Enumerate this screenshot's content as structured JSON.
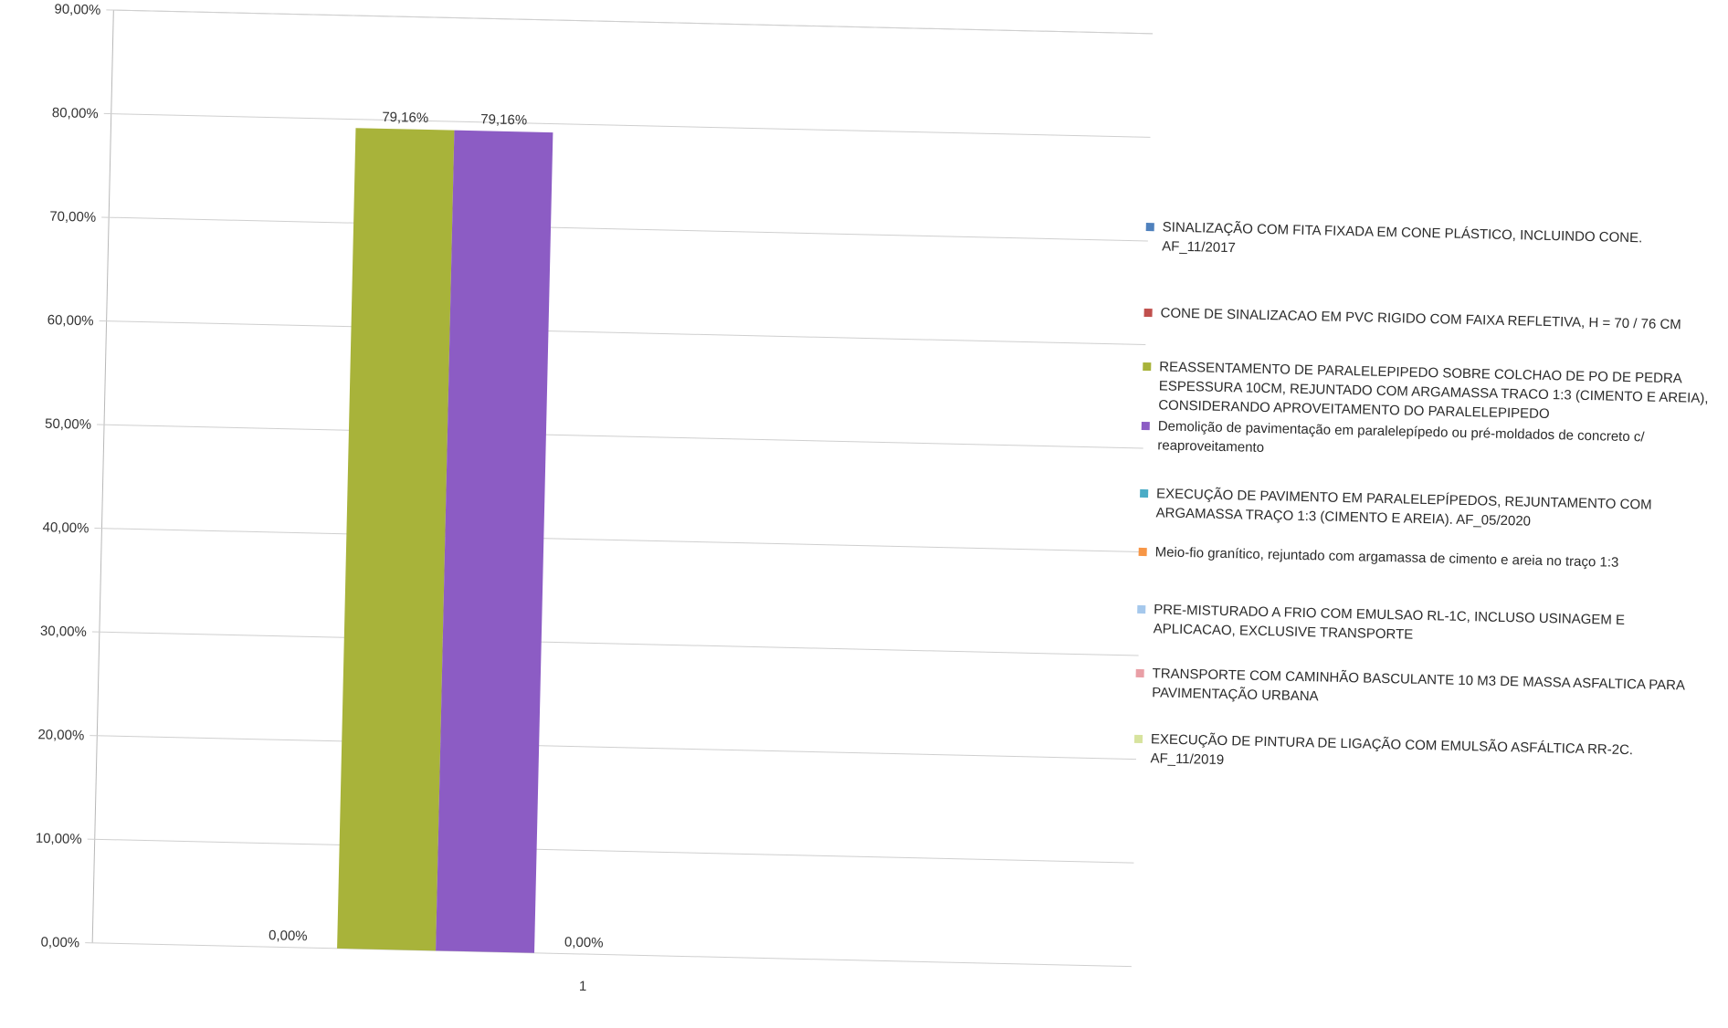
{
  "chart_data": {
    "type": "bar",
    "categories": [
      "1"
    ],
    "ylim": [
      0,
      0.9
    ],
    "y_ticks": [
      "0,00%",
      "10,00%",
      "20,00%",
      "30,00%",
      "40,00%",
      "50,00%",
      "60,00%",
      "70,00%",
      "80,00%",
      "90,00%"
    ],
    "grid": true,
    "legend_position": "right",
    "series": [
      {
        "name": "SINALIZAÇÃO COM FITA FIXADA EM CONE PLÁSTICO, INCLUINDO CONE. AF_11/2017",
        "values": [
          0
        ],
        "label": "",
        "color": "#4f81bd"
      },
      {
        "name": "CONE DE SINALIZACAO EM PVC RIGIDO COM FAIXA REFLETIVA, H = 70 / 76 CM",
        "values": [
          0
        ],
        "label": "0,00%",
        "color": "#c0504d"
      },
      {
        "name": "REASSENTAMENTO DE PARALELEPIPEDO SOBRE COLCHAO DE PO DE PEDRA ESPESSURA 10CM, REJUNTADO COM ARGAMASSA TRACO 1:3 (CIMENTO E AREIA), CONSIDERANDO APROVEITAMENTO DO PARALELEPIPEDO",
        "values": [
          0.7916
        ],
        "label": "79,16%",
        "color": "#a8b33a"
      },
      {
        "name": "Demolição de pavimentação em paralelepípedo ou pré-moldados de concreto c/ reaproveitamento",
        "values": [
          0.7916
        ],
        "label": "79,16%",
        "color": "#8c5cc4"
      },
      {
        "name": "EXECUÇÃO DE PAVIMENTO EM PARALELEPÍPEDOS, REJUNTAMENTO COM ARGAMASSA TRAÇO 1:3 (CIMENTO E AREIA). AF_05/2020",
        "values": [
          0
        ],
        "label": "0,00%",
        "color": "#4bacc6"
      },
      {
        "name": "Meio-fio granítico, rejuntado com argamassa de cimento e areia no traço 1:3",
        "values": [
          0
        ],
        "label": "",
        "color": "#f79646"
      },
      {
        "name": "PRE-MISTURADO A FRIO COM EMULSAO RL-1C, INCLUSO USINAGEM E APLICACAO, EXCLUSIVE TRANSPORTE",
        "values": [
          0
        ],
        "label": "",
        "color": "#a5c8ec"
      },
      {
        "name": "TRANSPORTE COM CAMINHÃO BASCULANTE 10 M3 DE MASSA ASFALTICA PARA PAVIMENTAÇÃO URBANA",
        "values": [
          0
        ],
        "label": "",
        "color": "#e99fa6"
      },
      {
        "name": "EXECUÇÃO DE PINTURA DE LIGAÇÃO COM EMULSÃO ASFÁLTICA RR-2C. AF_11/2019",
        "values": [
          0
        ],
        "label": "",
        "color": "#d7e39e"
      }
    ]
  }
}
